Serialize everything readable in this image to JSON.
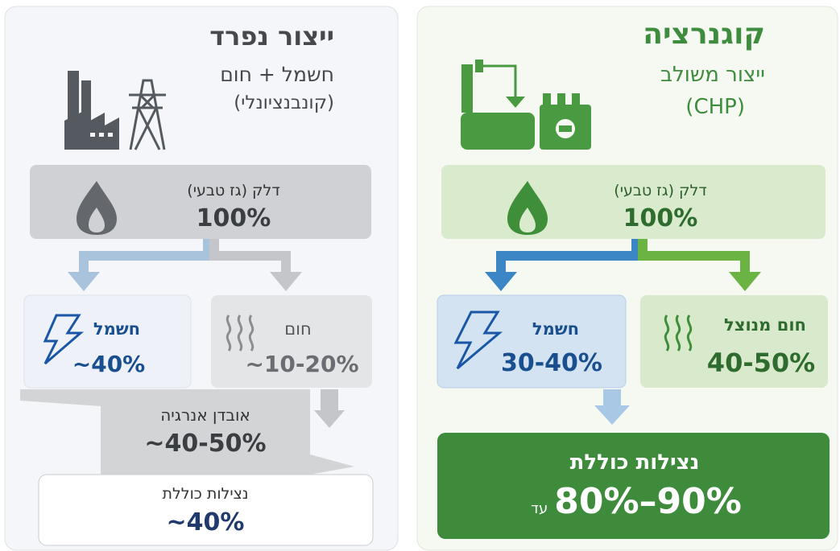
{
  "panels": [
    {
      "title": "ייצור נפרד",
      "subtitle": "חשמל + חום",
      "note": "(קונבנציונלי)",
      "fuel": {
        "label": "דלק (גז טבעי)",
        "value": "100%"
      },
      "electricity": {
        "label": "חשמל",
        "value": "~40%"
      },
      "heat": {
        "label": "חום",
        "value": "~10-20%"
      },
      "loss": {
        "label": "אובדן אנרגיה",
        "value": "~40-50%"
      },
      "total": {
        "label": "נצילות כוללת",
        "value": "~40%"
      }
    },
    {
      "title": "קוגנרציה",
      "subtitle": "ייצור משולב",
      "note": "(CHP)",
      "fuel": {
        "label": "דלק (גז טבעי)",
        "value": "100%"
      },
      "electricity": {
        "label": "חשמל",
        "value": "30-40%"
      },
      "heat": {
        "label": "חום מנוצל",
        "value": "40-50%"
      },
      "total": {
        "label": "נצילות כוללת",
        "prefix": "עד",
        "value": "80%–90%"
      }
    }
  ]
}
